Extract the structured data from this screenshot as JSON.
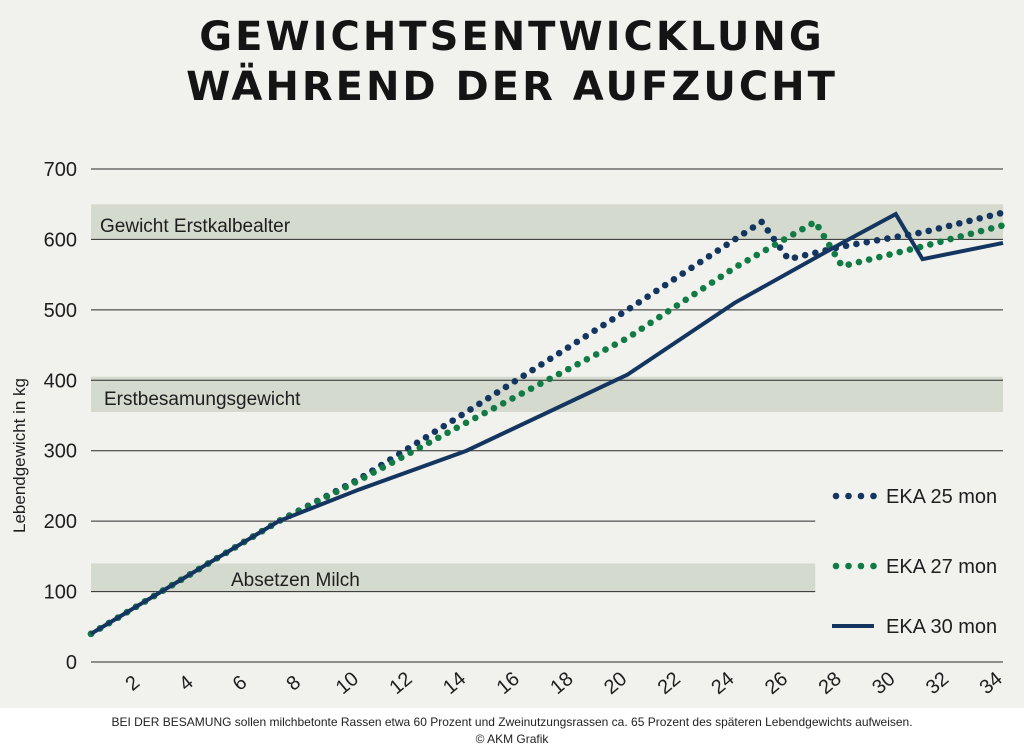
{
  "title": {
    "line1": "GEWICHTSENTWICKLUNG",
    "line2": "WÄHREND DER AUFZUCHT"
  },
  "caption": {
    "text": "BEI DER BESAMUNG sollen milchbetonte Rassen etwa 60 Prozent und Zweinutzungsrassen ca. 65 Prozent des späteren Lebendgewichts aufweisen.",
    "credit": "© AKM Grafik"
  },
  "colors": {
    "background": "#f1f2ee",
    "band": "#d5dace",
    "navy": "#13355f",
    "green": "#117a45"
  },
  "chart_data": {
    "type": "line",
    "title": "GEWICHTSENTWICKLUNG WÄHREND DER AUFZUCHT",
    "xlabel": "",
    "ylabel": "Lebendgewicht in kg",
    "xlim": [
      0,
      34
    ],
    "ylim": [
      0,
      700
    ],
    "x_ticks": [
      "2",
      "4",
      "6",
      "8",
      "10",
      "12",
      "14",
      "16",
      "18",
      "20",
      "22",
      "24",
      "26",
      "28",
      "30",
      "32",
      "34"
    ],
    "y_ticks": [
      "0",
      "100",
      "200",
      "300",
      "400",
      "500",
      "600",
      "700"
    ],
    "grid": "horizontal",
    "legend_position": "right",
    "bands": [
      {
        "label": "Gewicht Erstkalbealter",
        "from": 600,
        "to": 650,
        "x_end": 34
      },
      {
        "label": "Erstbesamungsgewicht",
        "from": 355,
        "to": 405,
        "x_end": 34
      },
      {
        "label": "Absetzen Milch",
        "from": 100,
        "to": 140,
        "x_end": 27
      }
    ],
    "series": [
      {
        "name": "EKA 25 mon",
        "style": "dotted",
        "color": "#13355f",
        "x": [
          0,
          7,
          10,
          14,
          20,
          24,
          25,
          26,
          28,
          31,
          34
        ],
        "y": [
          40,
          200,
          260,
          355,
          500,
          600,
          625,
          572,
          590,
          610,
          638
        ]
      },
      {
        "name": "EKA 27 mon",
        "style": "dotted",
        "color": "#117a45",
        "x": [
          0,
          7,
          10,
          14,
          20,
          24,
          27,
          28,
          31,
          34
        ],
        "y": [
          40,
          200,
          258,
          340,
          460,
          560,
          625,
          562,
          590,
          620
        ]
      },
      {
        "name": "EKA 30 mon",
        "style": "solid",
        "color": "#13355f",
        "x": [
          0,
          7,
          10,
          14,
          20,
          24,
          28,
          30,
          31,
          34
        ],
        "y": [
          40,
          200,
          245,
          300,
          408,
          510,
          595,
          636,
          572,
          595
        ]
      }
    ]
  }
}
